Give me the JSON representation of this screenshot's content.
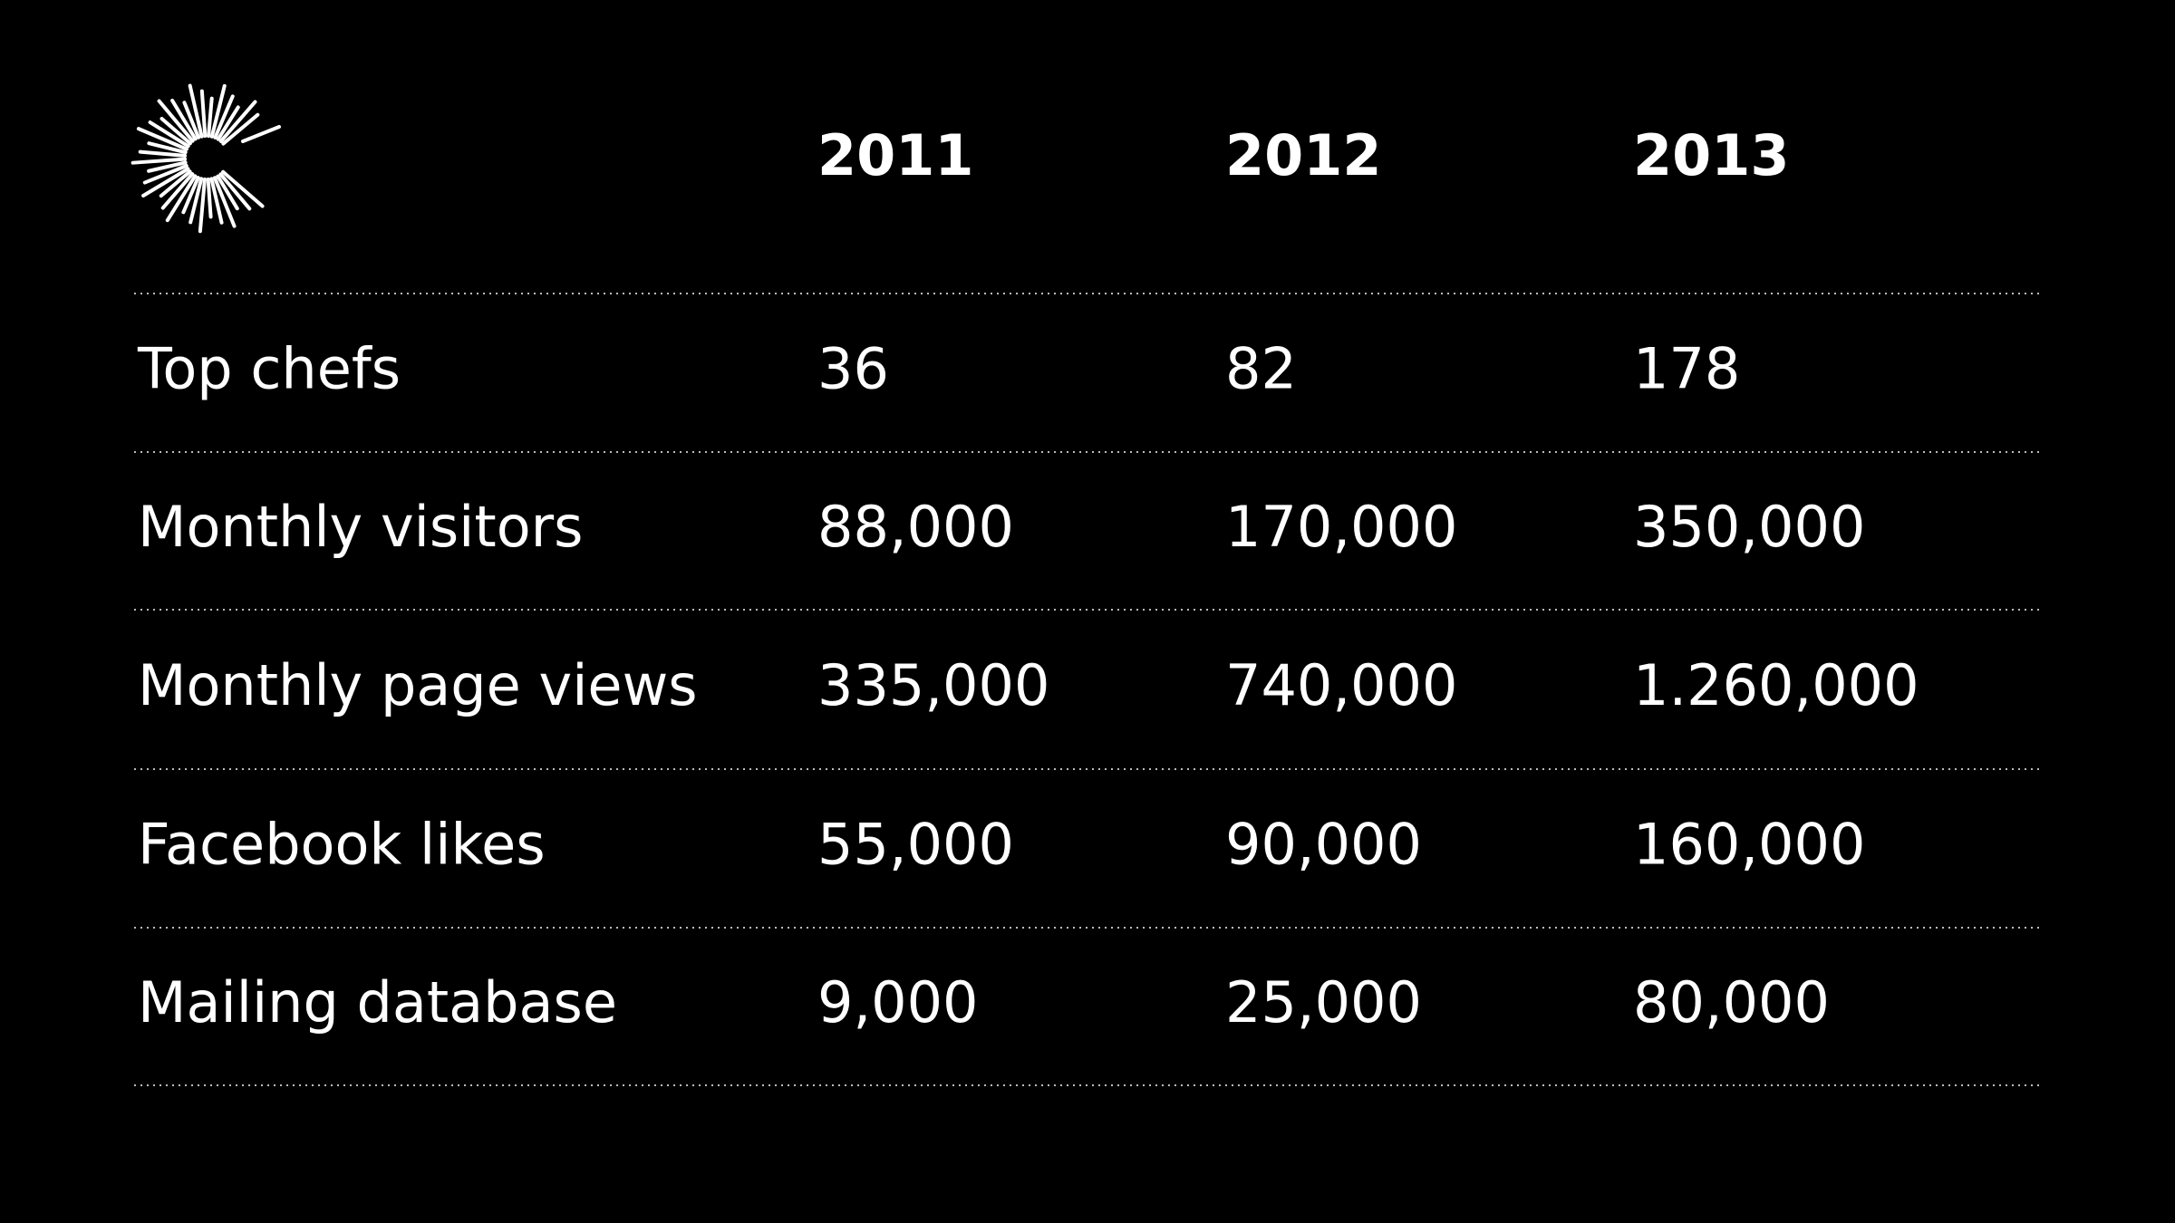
{
  "table": {
    "columns": [
      "2011",
      "2012",
      "2013"
    ],
    "rows": [
      [
        "Top chefs",
        "36",
        "82",
        "178"
      ],
      [
        "Monthly visitors",
        "88,000",
        "170,000",
        "350,000"
      ],
      [
        "Monthly page views",
        "335,000",
        "740,000",
        "1.260,000"
      ],
      [
        "Facebook likes",
        "55,000",
        "90,000",
        "160,000"
      ],
      [
        "Mailing database",
        "9,000",
        "25,000",
        "80,000"
      ]
    ]
  }
}
